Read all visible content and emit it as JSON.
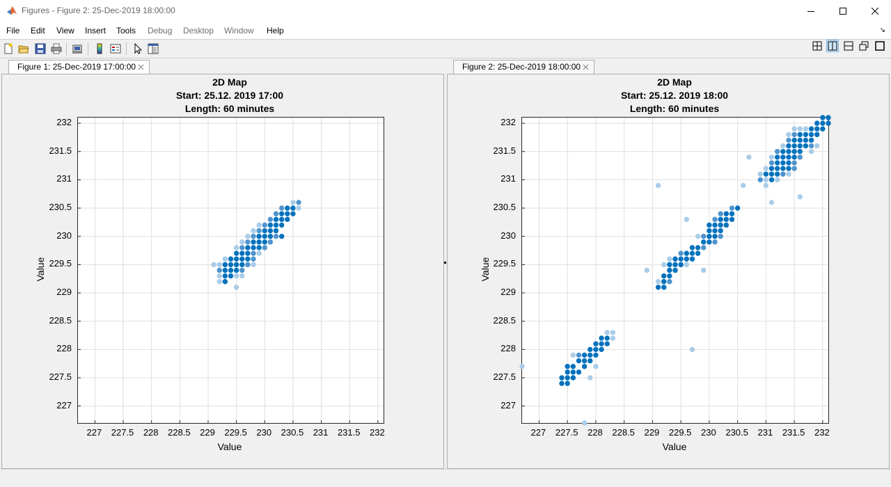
{
  "window": {
    "title": "Figures - Figure 2: 25-Dec-2019 18:00:00",
    "controls": [
      "minimize",
      "maximize",
      "close"
    ]
  },
  "menu": {
    "items": [
      {
        "label": "File",
        "enabled": true
      },
      {
        "label": "Edit",
        "enabled": true
      },
      {
        "label": "View",
        "enabled": true
      },
      {
        "label": "Insert",
        "enabled": true
      },
      {
        "label": "Tools",
        "enabled": true
      },
      {
        "label": "Debug",
        "enabled": false
      },
      {
        "label": "Desktop",
        "enabled": false
      },
      {
        "label": "Window",
        "enabled": false
      },
      {
        "label": "Help",
        "enabled": true
      }
    ]
  },
  "toolbar": {
    "icons": [
      "new-figure-icon",
      "open-file-icon",
      "save-icon",
      "print-icon",
      "print-preview-icon",
      "colorbar-icon",
      "legend-icon",
      "pointer-icon",
      "property-inspector-icon"
    ],
    "layout_icons": [
      "tile-grid-icon",
      "split-vertical-icon",
      "split-horizontal-icon",
      "float-icon",
      "maximize-icon"
    ]
  },
  "tabs": [
    {
      "label": "Figure 1: 25-Dec-2019 17:00:00",
      "active": false
    },
    {
      "label": "Figure 2: 25-Dec-2019 18:00:00",
      "active": true
    }
  ],
  "figures": [
    {
      "title_lines": [
        "2D Map",
        "Start: 25.12. 2019 17:00",
        "Length: 60 minutes"
      ],
      "xlabel": "Value",
      "ylabel": "Value"
    },
    {
      "title_lines": [
        "2D Map",
        "Start: 25.12. 2019 18:00",
        "Length: 60 minutes"
      ],
      "xlabel": "Value",
      "ylabel": "Value"
    }
  ],
  "chart_data": [
    {
      "type": "scatter",
      "xlabel": "Value",
      "ylabel": "Value",
      "xlim": [
        226.7,
        232.1
      ],
      "ylim": [
        226.7,
        232.1
      ],
      "xticks": [
        "227",
        "227.5",
        "228",
        "228.5",
        "229",
        "229.5",
        "230",
        "230.5",
        "231",
        "231.5",
        "232"
      ],
      "yticks": [
        "227",
        "227.5",
        "228",
        "228.5",
        "229",
        "229.5",
        "230",
        "230.5",
        "231",
        "231.5",
        "232"
      ],
      "grid": true,
      "colors": {
        "dark": "#0072bd",
        "mid": "#4f94cd",
        "light": "#a9cce8"
      },
      "points": [
        [
          230.5,
          230.6,
          1
        ],
        [
          230.6,
          230.6,
          2
        ],
        [
          230.5,
          230.5,
          3
        ],
        [
          230.6,
          230.5,
          1
        ],
        [
          230.4,
          230.5,
          3
        ],
        [
          230.3,
          230.5,
          2
        ],
        [
          230.3,
          230.4,
          3
        ],
        [
          230.4,
          230.4,
          3
        ],
        [
          230.5,
          230.4,
          3
        ],
        [
          230.2,
          230.4,
          2
        ],
        [
          230.1,
          230.3,
          2
        ],
        [
          230.2,
          230.3,
          3
        ],
        [
          230.3,
          230.3,
          3
        ],
        [
          230.4,
          230.3,
          3
        ],
        [
          230.0,
          230.2,
          2
        ],
        [
          230.1,
          230.2,
          3
        ],
        [
          230.2,
          230.2,
          3
        ],
        [
          230.3,
          230.2,
          3
        ],
        [
          229.9,
          230.2,
          1
        ],
        [
          229.9,
          230.1,
          2
        ],
        [
          230.0,
          230.1,
          3
        ],
        [
          230.1,
          230.1,
          3
        ],
        [
          230.2,
          230.1,
          3
        ],
        [
          229.8,
          230.1,
          1
        ],
        [
          229.7,
          230.0,
          1
        ],
        [
          229.8,
          230.0,
          2
        ],
        [
          229.9,
          230.0,
          3
        ],
        [
          230.0,
          230.0,
          3
        ],
        [
          230.1,
          230.0,
          3
        ],
        [
          230.2,
          230.0,
          2
        ],
        [
          230.3,
          230.0,
          3
        ],
        [
          229.6,
          229.9,
          1
        ],
        [
          229.7,
          229.9,
          2
        ],
        [
          229.8,
          229.9,
          3
        ],
        [
          229.9,
          229.9,
          3
        ],
        [
          230.0,
          229.9,
          3
        ],
        [
          230.1,
          229.9,
          2
        ],
        [
          229.5,
          229.8,
          1
        ],
        [
          229.6,
          229.8,
          2
        ],
        [
          229.7,
          229.8,
          3
        ],
        [
          229.8,
          229.8,
          3
        ],
        [
          229.9,
          229.8,
          3
        ],
        [
          230.0,
          229.8,
          2
        ],
        [
          229.5,
          229.7,
          3
        ],
        [
          229.6,
          229.7,
          3
        ],
        [
          229.7,
          229.7,
          3
        ],
        [
          229.8,
          229.7,
          2
        ],
        [
          229.9,
          229.7,
          1
        ],
        [
          229.3,
          229.6,
          1
        ],
        [
          229.4,
          229.6,
          3
        ],
        [
          229.5,
          229.6,
          3
        ],
        [
          229.6,
          229.6,
          3
        ],
        [
          229.7,
          229.6,
          3
        ],
        [
          229.8,
          229.6,
          2
        ],
        [
          229.1,
          229.5,
          1
        ],
        [
          229.2,
          229.5,
          1
        ],
        [
          229.3,
          229.5,
          3
        ],
        [
          229.4,
          229.5,
          3
        ],
        [
          229.5,
          229.5,
          3
        ],
        [
          229.6,
          229.5,
          3
        ],
        [
          229.7,
          229.5,
          2
        ],
        [
          229.8,
          229.5,
          1
        ],
        [
          229.2,
          229.4,
          2
        ],
        [
          229.3,
          229.4,
          3
        ],
        [
          229.4,
          229.4,
          3
        ],
        [
          229.5,
          229.4,
          3
        ],
        [
          229.6,
          229.4,
          2
        ],
        [
          229.2,
          229.3,
          1
        ],
        [
          229.3,
          229.3,
          3
        ],
        [
          229.4,
          229.3,
          3
        ],
        [
          229.5,
          229.3,
          1
        ],
        [
          229.6,
          229.3,
          1
        ],
        [
          229.2,
          229.2,
          1
        ],
        [
          229.3,
          229.2,
          3
        ],
        [
          229.5,
          229.1,
          1
        ]
      ]
    },
    {
      "type": "scatter",
      "xlabel": "Value",
      "ylabel": "Value",
      "xlim": [
        226.7,
        232.1
      ],
      "ylim": [
        226.7,
        232.1
      ],
      "xticks": [
        "227",
        "227.5",
        "228",
        "228.5",
        "229",
        "229.5",
        "230",
        "230.5",
        "231",
        "231.5",
        "232"
      ],
      "yticks": [
        "227",
        "227.5",
        "228",
        "228.5",
        "229",
        "229.5",
        "230",
        "230.5",
        "231",
        "231.5",
        "232"
      ],
      "grid": true,
      "colors": {
        "dark": "#0072bd",
        "mid": "#4f94cd",
        "light": "#a9cce8"
      },
      "points": [
        [
          232.0,
          232.1,
          3
        ],
        [
          232.1,
          232.1,
          3
        ],
        [
          231.9,
          232.0,
          3
        ],
        [
          232.0,
          232.0,
          3
        ],
        [
          232.1,
          232.0,
          3
        ],
        [
          231.5,
          231.9,
          1
        ],
        [
          231.6,
          231.9,
          1
        ],
        [
          231.7,
          231.9,
          1
        ],
        [
          231.8,
          231.9,
          3
        ],
        [
          231.9,
          231.9,
          3
        ],
        [
          232.0,
          231.9,
          3
        ],
        [
          231.4,
          231.8,
          1
        ],
        [
          231.5,
          231.8,
          2
        ],
        [
          231.6,
          231.8,
          3
        ],
        [
          231.7,
          231.8,
          3
        ],
        [
          231.8,
          231.8,
          3
        ],
        [
          231.9,
          231.8,
          3
        ],
        [
          231.4,
          231.7,
          2
        ],
        [
          231.5,
          231.7,
          3
        ],
        [
          231.6,
          231.7,
          3
        ],
        [
          231.7,
          231.7,
          3
        ],
        [
          231.8,
          231.7,
          3
        ],
        [
          231.3,
          231.6,
          1
        ],
        [
          231.4,
          231.6,
          3
        ],
        [
          231.5,
          231.6,
          3
        ],
        [
          231.6,
          231.6,
          3
        ],
        [
          231.7,
          231.6,
          3
        ],
        [
          231.8,
          231.6,
          2
        ],
        [
          231.9,
          231.6,
          1
        ],
        [
          231.2,
          231.5,
          2
        ],
        [
          231.3,
          231.5,
          3
        ],
        [
          231.4,
          231.5,
          3
        ],
        [
          231.5,
          231.5,
          3
        ],
        [
          231.6,
          231.5,
          3
        ],
        [
          231.8,
          231.5,
          1
        ],
        [
          231.1,
          231.4,
          1
        ],
        [
          231.2,
          231.4,
          3
        ],
        [
          231.3,
          231.4,
          3
        ],
        [
          231.4,
          231.4,
          3
        ],
        [
          231.5,
          231.4,
          3
        ],
        [
          231.6,
          231.4,
          2
        ],
        [
          230.7,
          231.4,
          1
        ],
        [
          231.1,
          231.3,
          2
        ],
        [
          231.2,
          231.3,
          3
        ],
        [
          231.3,
          231.3,
          3
        ],
        [
          231.4,
          231.3,
          3
        ],
        [
          231.5,
          231.3,
          2
        ],
        [
          231.0,
          231.2,
          1
        ],
        [
          231.1,
          231.2,
          3
        ],
        [
          231.2,
          231.2,
          3
        ],
        [
          231.3,
          231.2,
          3
        ],
        [
          231.4,
          231.2,
          3
        ],
        [
          231.5,
          231.2,
          2
        ],
        [
          230.9,
          231.1,
          1
        ],
        [
          231.0,
          231.1,
          3
        ],
        [
          231.1,
          231.1,
          3
        ],
        [
          231.2,
          231.1,
          3
        ],
        [
          231.3,
          231.1,
          2
        ],
        [
          231.4,
          231.1,
          1
        ],
        [
          230.9,
          231.0,
          2
        ],
        [
          231.0,
          231.0,
          1
        ],
        [
          231.1,
          231.0,
          3
        ],
        [
          231.2,
          231.0,
          1
        ],
        [
          231.0,
          230.9,
          1
        ],
        [
          230.6,
          230.9,
          1
        ],
        [
          229.1,
          230.9,
          1
        ],
        [
          231.6,
          230.7,
          1
        ],
        [
          231.1,
          230.6,
          1
        ],
        [
          230.5,
          230.5,
          3
        ],
        [
          230.4,
          230.5,
          2
        ],
        [
          230.2,
          230.4,
          2
        ],
        [
          230.3,
          230.4,
          3
        ],
        [
          230.4,
          230.4,
          3
        ],
        [
          230.1,
          230.3,
          2
        ],
        [
          230.2,
          230.3,
          3
        ],
        [
          230.3,
          230.3,
          3
        ],
        [
          230.4,
          230.3,
          3
        ],
        [
          229.6,
          230.3,
          1
        ],
        [
          230.0,
          230.2,
          3
        ],
        [
          230.1,
          230.2,
          3
        ],
        [
          230.2,
          230.2,
          3
        ],
        [
          230.3,
          230.2,
          3
        ],
        [
          230.0,
          230.1,
          3
        ],
        [
          230.1,
          230.1,
          3
        ],
        [
          230.2,
          230.1,
          3
        ],
        [
          229.8,
          230.0,
          1
        ],
        [
          229.9,
          230.0,
          2
        ],
        [
          230.0,
          230.0,
          3
        ],
        [
          230.1,
          230.0,
          3
        ],
        [
          230.2,
          230.0,
          2
        ],
        [
          229.9,
          229.9,
          3
        ],
        [
          230.0,
          229.9,
          3
        ],
        [
          230.1,
          229.9,
          2
        ],
        [
          229.7,
          229.8,
          3
        ],
        [
          229.8,
          229.8,
          3
        ],
        [
          229.9,
          229.8,
          2
        ],
        [
          229.5,
          229.7,
          2
        ],
        [
          229.6,
          229.7,
          3
        ],
        [
          229.7,
          229.7,
          3
        ],
        [
          229.8,
          229.7,
          3
        ],
        [
          229.4,
          229.6,
          3
        ],
        [
          229.5,
          229.6,
          3
        ],
        [
          229.6,
          229.6,
          3
        ],
        [
          229.7,
          229.6,
          3
        ],
        [
          229.3,
          229.6,
          1
        ],
        [
          229.3,
          229.5,
          3
        ],
        [
          229.4,
          229.5,
          3
        ],
        [
          229.5,
          229.5,
          3
        ],
        [
          229.6,
          229.5,
          1
        ],
        [
          229.2,
          229.5,
          1
        ],
        [
          229.3,
          229.4,
          3
        ],
        [
          229.4,
          229.4,
          3
        ],
        [
          229.9,
          229.4,
          1
        ],
        [
          228.9,
          229.4,
          1
        ],
        [
          229.2,
          229.3,
          3
        ],
        [
          229.3,
          229.3,
          3
        ],
        [
          229.1,
          229.2,
          1
        ],
        [
          229.2,
          229.2,
          3
        ],
        [
          229.3,
          229.2,
          2
        ],
        [
          229.1,
          229.1,
          3
        ],
        [
          229.2,
          229.1,
          3
        ],
        [
          228.2,
          228.3,
          1
        ],
        [
          228.3,
          228.3,
          1
        ],
        [
          228.1,
          228.2,
          3
        ],
        [
          228.2,
          228.2,
          3
        ],
        [
          228.3,
          228.2,
          1
        ],
        [
          228.0,
          228.1,
          3
        ],
        [
          228.1,
          228.1,
          3
        ],
        [
          228.2,
          228.1,
          3
        ],
        [
          227.9,
          228.0,
          3
        ],
        [
          228.0,
          228.0,
          3
        ],
        [
          228.1,
          228.0,
          3
        ],
        [
          229.7,
          228.0,
          1
        ],
        [
          227.6,
          227.9,
          1
        ],
        [
          227.7,
          227.9,
          2
        ],
        [
          227.8,
          227.9,
          3
        ],
        [
          227.9,
          227.9,
          3
        ],
        [
          228.0,
          227.9,
          3
        ],
        [
          227.7,
          227.8,
          3
        ],
        [
          227.8,
          227.8,
          3
        ],
        [
          227.9,
          227.8,
          3
        ],
        [
          227.5,
          227.7,
          3
        ],
        [
          227.6,
          227.7,
          3
        ],
        [
          227.8,
          227.7,
          3
        ],
        [
          228.0,
          227.7,
          1
        ],
        [
          226.7,
          227.7,
          1
        ],
        [
          227.5,
          227.6,
          3
        ],
        [
          227.6,
          227.6,
          3
        ],
        [
          227.7,
          227.6,
          3
        ],
        [
          227.4,
          227.5,
          3
        ],
        [
          227.5,
          227.5,
          3
        ],
        [
          227.6,
          227.5,
          3
        ],
        [
          227.9,
          227.5,
          1
        ],
        [
          227.4,
          227.4,
          3
        ],
        [
          227.5,
          227.4,
          3
        ],
        [
          227.8,
          226.7,
          1
        ]
      ]
    }
  ]
}
